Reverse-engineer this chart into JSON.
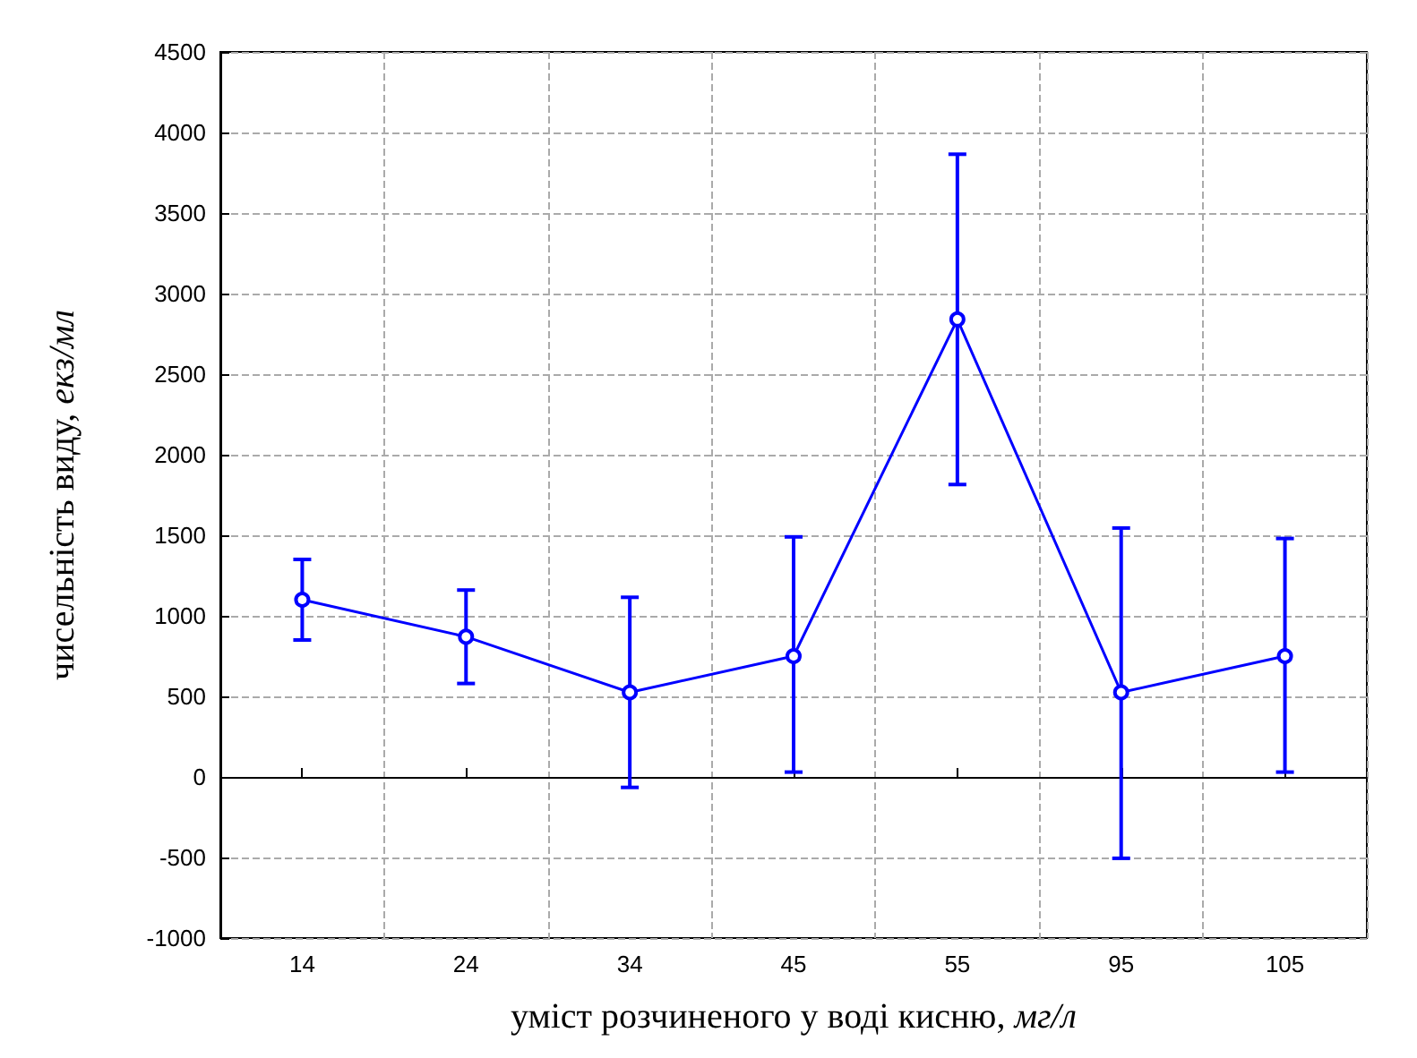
{
  "chart_data": {
    "type": "line",
    "xlabel": "уміст розчиненого у воді кисню, мг/л",
    "ylabel": "чисельність виду, екз/мл",
    "categories": [
      "14",
      "24",
      "34",
      "45",
      "55",
      "95",
      "105"
    ],
    "series": [
      {
        "color": "#0000ff",
        "values": [
          1100,
          870,
          525,
          750,
          2840,
          525,
          750
        ],
        "errors": [
          [
            850,
            1350
          ],
          [
            580,
            1160
          ],
          [
            -65,
            1115
          ],
          [
            30,
            1490
          ],
          [
            1815,
            3865
          ],
          [
            -505,
            1545
          ],
          [
            30,
            1480
          ]
        ]
      }
    ],
    "ylim": [
      -1000,
      4500
    ],
    "yticks": [
      -1000,
      -500,
      0,
      500,
      1000,
      1500,
      2000,
      2500,
      3000,
      3500,
      4000,
      4500
    ],
    "grid": true,
    "marker": "circle",
    "line_style": "solid"
  }
}
